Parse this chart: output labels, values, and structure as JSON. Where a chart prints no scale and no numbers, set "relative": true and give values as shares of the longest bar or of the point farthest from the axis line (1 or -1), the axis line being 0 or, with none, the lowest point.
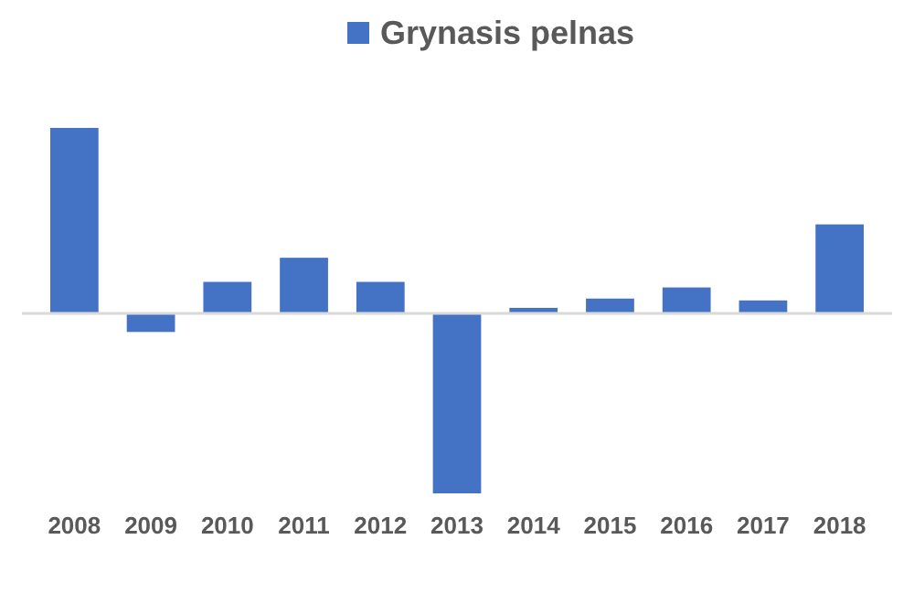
{
  "chart_data": {
    "type": "bar",
    "relative": true,
    "categories": [
      "2008",
      "2009",
      "2010",
      "2011",
      "2012",
      "2013",
      "2014",
      "2015",
      "2016",
      "2017",
      "2018"
    ],
    "series": [
      {
        "name": "Grynasis pelnas",
        "color": "#4472c4",
        "values": [
          1,
          -0.1,
          0.17,
          0.3,
          0.17,
          -0.97,
          0.03,
          0.08,
          0.14,
          0.07,
          0.48
        ]
      }
    ],
    "legend": "top"
  }
}
